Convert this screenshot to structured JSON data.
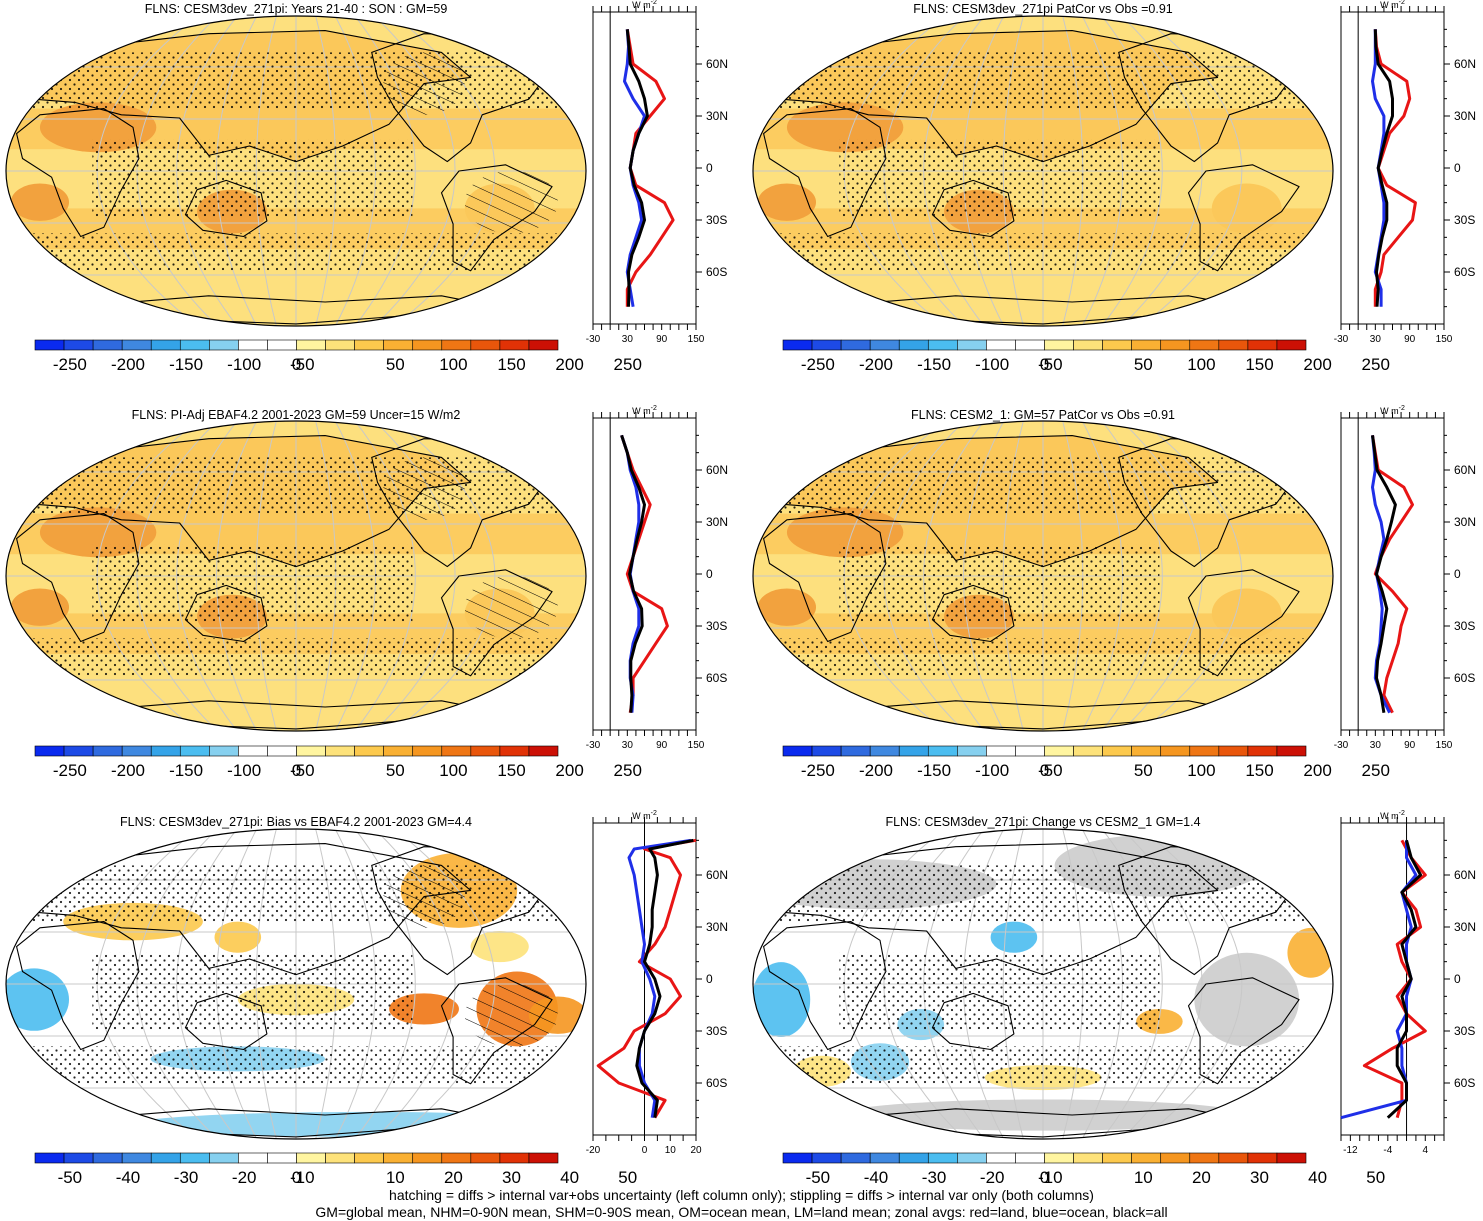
{
  "colorbars": {
    "main": {
      "tick_labels": [
        "-250",
        "-200",
        "-150",
        "-100",
        "-50",
        "0",
        "50",
        "100",
        "150",
        "200",
        "250"
      ],
      "colors": [
        "#0a2aef",
        "#1d4ae6",
        "#2f6adf",
        "#3f88e0",
        "#34a3e8",
        "#4bbdf0",
        "#86d0ef",
        "#ffffff",
        "#ffffff",
        "#fff5a0",
        "#fde27a",
        "#fcc94d",
        "#f9b033",
        "#f59620",
        "#ef7614",
        "#e9560b",
        "#e13206",
        "#cc1005"
      ]
    },
    "diff": {
      "tick_labels": [
        "-50",
        "-40",
        "-30",
        "-20",
        "-10",
        "0",
        "10",
        "20",
        "30",
        "40",
        "50"
      ],
      "colors": [
        "#0a2aef",
        "#1d4ae6",
        "#2f6adf",
        "#3f88e0",
        "#34a3e8",
        "#4bbdf0",
        "#86d0ef",
        "#ffffff",
        "#ffffff",
        "#fff5a0",
        "#fde27a",
        "#fcc94d",
        "#f9b033",
        "#f59620",
        "#ef7614",
        "#e9560b",
        "#e13206",
        "#cc1005"
      ]
    }
  },
  "colors": {
    "land": "#e81515",
    "ocean": "#1f2fe8",
    "all": "#000000",
    "map_base_main": "#fde07e",
    "map_band_main": "#fbc85a",
    "map_hot_main": "#f2a23e",
    "missing": "#cccccc"
  },
  "zonal_common": {
    "unit": "W m",
    "unit_sup": "-2",
    "lat_labels": [
      "60N",
      "30N",
      "0",
      "30S",
      "60S"
    ],
    "lat_values": [
      60,
      30,
      0,
      -30,
      -60
    ]
  },
  "chart_data": [
    {
      "type": "heatmap",
      "title": "FLNS: CESM3dev_271pi: Years 21-40 : SON : GM=59",
      "colorbar": "main",
      "hatching": true,
      "stippling": true,
      "zonal_profile": {
        "type": "line",
        "xlim": [
          -30,
          150
        ],
        "x_ticks": [
          "-30",
          "30",
          "90",
          "150"
        ],
        "series": [
          {
            "name": "land",
            "lat": [
              80,
              70,
              60,
              50,
              40,
              30,
              20,
              10,
              0,
              -10,
              -20,
              -30,
              -40,
              -50,
              -60,
              -70,
              -80
            ],
            "values": [
              30,
              35,
              40,
              80,
              95,
              70,
              45,
              40,
              35,
              45,
              95,
              110,
              90,
              70,
              45,
              30,
              30
            ]
          },
          {
            "name": "ocean",
            "lat": [
              80,
              70,
              60,
              50,
              40,
              30,
              20,
              10,
              0,
              -10,
              -20,
              -30,
              -40,
              -50,
              -60,
              -70,
              -80
            ],
            "values": [
              30,
              32,
              30,
              25,
              40,
              60,
              50,
              40,
              35,
              40,
              50,
              55,
              45,
              35,
              30,
              35,
              40
            ]
          },
          {
            "name": "all",
            "lat": [
              80,
              70,
              60,
              50,
              40,
              30,
              20,
              10,
              0,
              -10,
              -20,
              -30,
              -40,
              -50,
              -60,
              -70,
              -80
            ],
            "values": [
              30,
              33,
              35,
              50,
              60,
              65,
              50,
              40,
              35,
              42,
              55,
              60,
              50,
              38,
              32,
              33,
              32
            ]
          }
        ]
      }
    },
    {
      "type": "heatmap",
      "title": "FLNS: CESM3dev_271pi PatCor vs Obs =0.91",
      "colorbar": "main",
      "hatching": false,
      "stippling": true,
      "zonal_profile": {
        "type": "line",
        "xlim": [
          -30,
          150
        ],
        "x_ticks": [
          "-30",
          "30",
          "90",
          "150"
        ],
        "series": [
          {
            "name": "land",
            "lat": [
              80,
              70,
              60,
              50,
              40,
              30,
              20,
              10,
              0,
              -10,
              -20,
              -30,
              -40,
              -50,
              -60,
              -70,
              -80
            ],
            "values": [
              30,
              32,
              40,
              85,
              90,
              80,
              55,
              45,
              35,
              50,
              100,
              95,
              70,
              45,
              40,
              30,
              30
            ]
          },
          {
            "name": "ocean",
            "lat": [
              80,
              70,
              60,
              50,
              40,
              30,
              20,
              10,
              0,
              -10,
              -20,
              -30,
              -40,
              -50,
              -60,
              -70,
              -80
            ],
            "values": [
              30,
              30,
              30,
              25,
              30,
              45,
              45,
              40,
              35,
              40,
              45,
              45,
              40,
              35,
              30,
              40,
              40
            ]
          },
          {
            "name": "all",
            "lat": [
              80,
              70,
              60,
              50,
              40,
              30,
              20,
              10,
              0,
              -10,
              -20,
              -30,
              -40,
              -50,
              -60,
              -70,
              -80
            ],
            "values": [
              30,
              31,
              35,
              55,
              60,
              60,
              50,
              42,
              35,
              42,
              50,
              50,
              42,
              36,
              32,
              35,
              33
            ]
          }
        ]
      }
    },
    {
      "type": "heatmap",
      "title": "FLNS: PI-Adj EBAF4.2 2001-2023 GM=59 Uncer=15 W/m2",
      "colorbar": "main",
      "hatching": true,
      "stippling": true,
      "zonal_profile": {
        "type": "line",
        "xlim": [
          -30,
          150
        ],
        "x_ticks": [
          "-30",
          "30",
          "90",
          "150"
        ],
        "series": [
          {
            "name": "land",
            "lat": [
              80,
              70,
              60,
              50,
              40,
              30,
              20,
              10,
              0,
              -10,
              -20,
              -30,
              -40,
              -50,
              -60,
              -70,
              -80
            ],
            "values": [
              20,
              30,
              40,
              55,
              70,
              60,
              50,
              40,
              30,
              40,
              90,
              100,
              80,
              60,
              40,
              40,
              35
            ]
          },
          {
            "name": "ocean",
            "lat": [
              80,
              70,
              60,
              50,
              40,
              30,
              20,
              10,
              0,
              -10,
              -20,
              -30,
              -40,
              -50,
              -60,
              -70,
              -80
            ],
            "values": [
              20,
              30,
              35,
              45,
              50,
              50,
              45,
              40,
              35,
              40,
              50,
              50,
              40,
              35,
              35,
              40,
              38
            ]
          },
          {
            "name": "all",
            "lat": [
              80,
              70,
              60,
              50,
              40,
              30,
              20,
              10,
              0,
              -10,
              -20,
              -30,
              -40,
              -50,
              -60,
              -70,
              -80
            ],
            "values": [
              20,
              30,
              37,
              50,
              60,
              55,
              47,
              40,
              34,
              41,
              55,
              56,
              44,
              36,
              36,
              38,
              36
            ]
          }
        ]
      }
    },
    {
      "type": "heatmap",
      "title": "FLNS: CESM2_1: GM=57 PatCor vs Obs =0.91",
      "colorbar": "main",
      "hatching": false,
      "stippling": true,
      "zonal_profile": {
        "type": "line",
        "xlim": [
          -30,
          150
        ],
        "x_ticks": [
          "-30",
          "30",
          "90",
          "150"
        ],
        "series": [
          {
            "name": "land",
            "lat": [
              80,
              70,
              60,
              50,
              40,
              30,
              20,
              10,
              0,
              -10,
              -20,
              -30,
              -40,
              -50,
              -60,
              -70,
              -80
            ],
            "values": [
              25,
              30,
              35,
              80,
              95,
              75,
              55,
              40,
              30,
              60,
              85,
              75,
              70,
              60,
              50,
              45,
              60
            ]
          },
          {
            "name": "ocean",
            "lat": [
              80,
              70,
              60,
              50,
              40,
              30,
              20,
              10,
              0,
              -10,
              -20,
              -30,
              -40,
              -50,
              -60,
              -70,
              -80
            ],
            "values": [
              25,
              28,
              30,
              25,
              30,
              40,
              45,
              38,
              32,
              38,
              42,
              40,
              38,
              32,
              30,
              40,
              55
            ]
          },
          {
            "name": "all",
            "lat": [
              80,
              70,
              60,
              50,
              40,
              30,
              20,
              10,
              0,
              -10,
              -20,
              -30,
              -40,
              -50,
              -60,
              -70,
              -80
            ],
            "values": [
              25,
              29,
              33,
              50,
              65,
              58,
              50,
              40,
              32,
              42,
              50,
              45,
              40,
              34,
              32,
              40,
              45
            ]
          }
        ]
      }
    },
    {
      "type": "heatmap",
      "title": "FLNS: CESM3dev_271pi: Bias vs EBAF4.2 2001-2023  GM=4.4",
      "colorbar": "diff",
      "hatching": true,
      "stippling": true,
      "zonal_profile": {
        "type": "line",
        "xlim": [
          -20,
          20
        ],
        "x_ticks": [
          "-20",
          "0",
          "10",
          "20"
        ],
        "series": [
          {
            "name": "land",
            "lat": [
              80,
              75,
              70,
              60,
              50,
              40,
              30,
              20,
              10,
              0,
              -10,
              -20,
              -30,
              -40,
              -50,
              -60,
              -70,
              -80
            ],
            "values": [
              20,
              0,
              10,
              14,
              12,
              10,
              8,
              4,
              -2,
              10,
              14,
              8,
              -4,
              -8,
              -18,
              -10,
              8,
              4
            ]
          },
          {
            "name": "ocean",
            "lat": [
              80,
              75,
              70,
              60,
              50,
              40,
              30,
              20,
              10,
              0,
              -10,
              -20,
              -30,
              -40,
              -50,
              -60,
              -70,
              -80
            ],
            "values": [
              18,
              -4,
              -6,
              -4,
              -3,
              -2,
              -1,
              0,
              -1,
              2,
              4,
              3,
              0,
              -2,
              -2,
              0,
              4,
              3
            ]
          },
          {
            "name": "all",
            "lat": [
              80,
              75,
              70,
              60,
              50,
              40,
              30,
              20,
              10,
              0,
              -10,
              -20,
              -30,
              -40,
              -50,
              -60,
              -70,
              -80
            ],
            "values": [
              19,
              2,
              4,
              5,
              4,
              3,
              3,
              2,
              0,
              4,
              6,
              4,
              0,
              -2,
              -3,
              -1,
              5,
              4
            ]
          }
        ]
      }
    },
    {
      "type": "heatmap",
      "title": "FLNS: CESM3dev_271pi: Change vs CESM2_1 GM=1.4",
      "colorbar": "diff",
      "hatching": false,
      "stippling": true,
      "zonal_profile": {
        "type": "line",
        "xlim": [
          -14,
          8
        ],
        "x_ticks": [
          "-12",
          "-4",
          "4"
        ],
        "series": [
          {
            "name": "land",
            "lat": [
              80,
              70,
              60,
              50,
              40,
              30,
              20,
              10,
              0,
              -10,
              -20,
              -30,
              -40,
              -50,
              -60,
              -70,
              -80
            ],
            "values": [
              -1,
              1,
              4,
              -1,
              2,
              3,
              -2,
              -1,
              1,
              -2,
              0,
              4,
              -3,
              -9,
              -1,
              -1,
              -2
            ]
          },
          {
            "name": "ocean",
            "lat": [
              80,
              70,
              60,
              50,
              40,
              30,
              20,
              10,
              0,
              -10,
              -20,
              -30,
              -40,
              -50,
              -60,
              -70,
              -80
            ],
            "values": [
              0,
              0,
              2,
              -1,
              0,
              1,
              0,
              0,
              1,
              0,
              0,
              -2,
              -1,
              -1,
              0,
              0,
              -14
            ]
          },
          {
            "name": "all",
            "lat": [
              80,
              70,
              60,
              50,
              40,
              30,
              20,
              10,
              0,
              -10,
              -20,
              -30,
              -40,
              -50,
              -60,
              -70,
              -80
            ],
            "values": [
              0,
              1,
              3,
              -1,
              1,
              2,
              -1,
              0,
              1,
              -1,
              0,
              0,
              -2,
              -2,
              0,
              0,
              -4
            ]
          }
        ]
      }
    }
  ],
  "footer": {
    "line1": "hatching = diffs > internal var+obs uncertainty (left column only); stippling = diffs > internal var only (both columns)",
    "line2": "GM=global mean, NHM=0-90N mean, SHM=0-90S mean, OM=ocean mean, LM=land mean; zonal avgs: red=land, blue=ocean, black=all"
  }
}
